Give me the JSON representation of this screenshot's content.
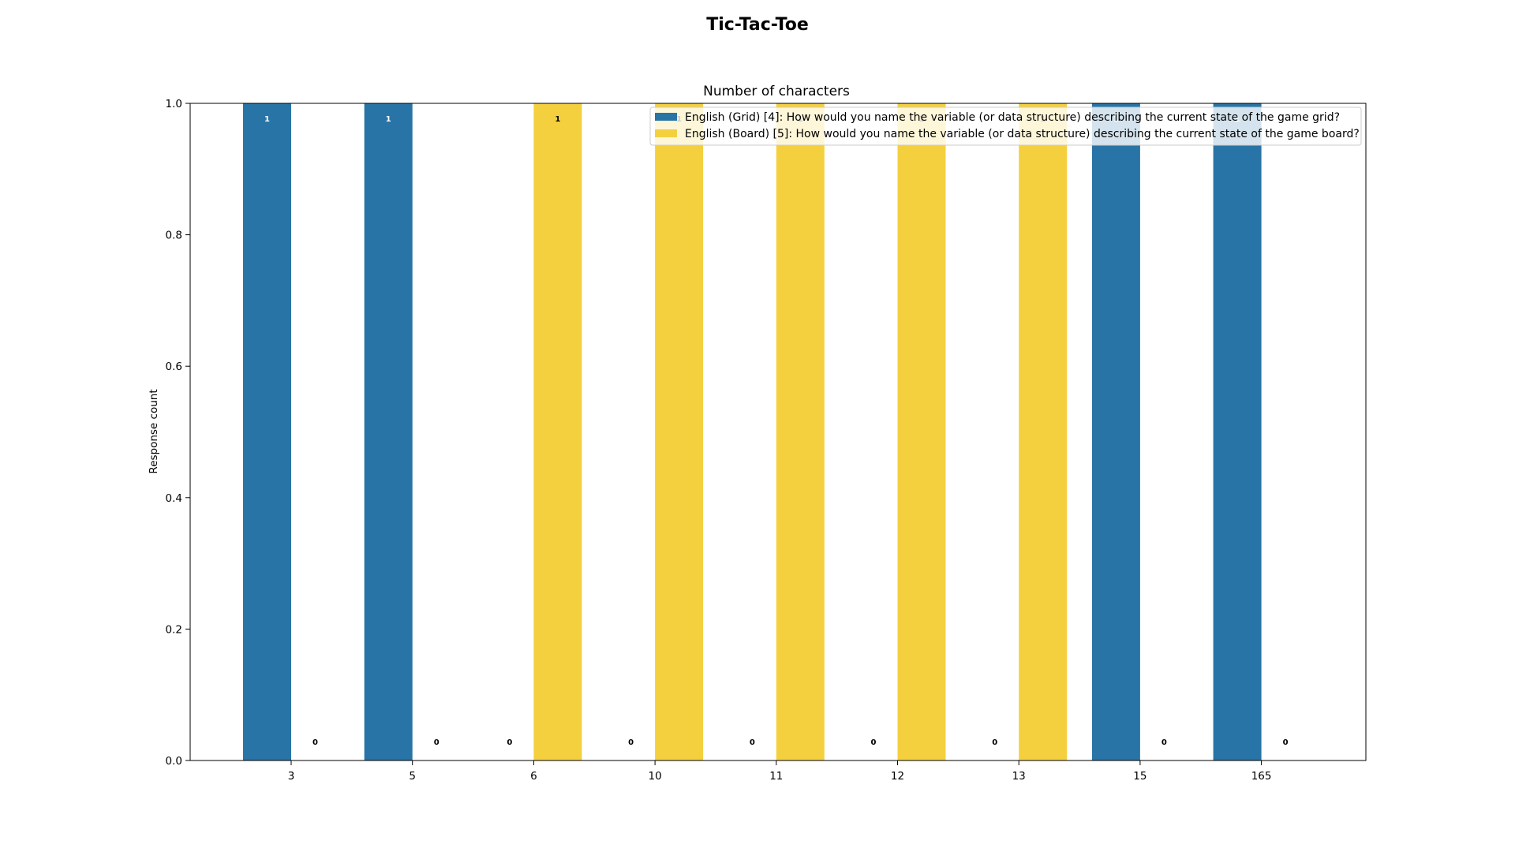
{
  "figure": {
    "title": "Tic-Tac-Toe"
  },
  "chart_data": {
    "type": "bar",
    "title": "Number of characters",
    "xlabel": "",
    "ylabel": "Response count",
    "ylim": [
      0,
      1.0
    ],
    "yticks": [
      "0.0",
      "0.2",
      "0.4",
      "0.6",
      "0.8",
      "1.0"
    ],
    "categories": [
      "3",
      "5",
      "6",
      "10",
      "11",
      "12",
      "13",
      "15",
      "165"
    ],
    "series": [
      {
        "name": "English (Grid) [4]: How would you name the variable (or data structure) describing the current state of the game grid?",
        "color": "#2874a6",
        "label_color": "#ffffff",
        "values": [
          1,
          1,
          0,
          0,
          0,
          0,
          0,
          1,
          1
        ]
      },
      {
        "name": "English (Board) [5]: How would you name the variable (or data structure) describing the current state of the game board?",
        "color": "#f4d03f",
        "label_color": "#000000",
        "values": [
          0,
          0,
          1,
          1,
          1,
          1,
          1,
          0,
          0
        ]
      }
    ],
    "legend_position": "top-right",
    "grid": false
  }
}
